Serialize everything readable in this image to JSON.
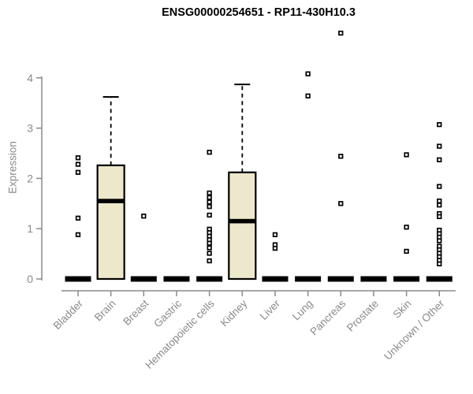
{
  "chart_data": {
    "type": "boxplot",
    "title": "ENSG00000254651 - RP11-430H10.3",
    "ylabel": "Expression",
    "xlabel": "",
    "ylim": [
      0,
      4
    ],
    "yticks": [
      0,
      1,
      2,
      3,
      4
    ],
    "grid": false,
    "legend": "none",
    "categories": [
      "Bladder",
      "Brain",
      "Breast",
      "Gastric",
      "Hematopoietic cells",
      "Kidney",
      "Liver",
      "Lung",
      "Pancreas",
      "Prostate",
      "Skin",
      "Unknown / Other"
    ],
    "boxes": [
      {
        "category": "Bladder",
        "q1": 0,
        "median": 0,
        "q3": 0,
        "whisker_low": 0,
        "whisker_high": 0,
        "outliers": [
          2.41,
          2.28,
          2.12,
          1.21,
          0.88
        ]
      },
      {
        "category": "Brain",
        "q1": 0,
        "median": 1.55,
        "q3": 2.26,
        "whisker_low": 0,
        "whisker_high": 3.62,
        "outliers": []
      },
      {
        "category": "Breast",
        "q1": 0,
        "median": 0,
        "q3": 0,
        "whisker_low": 0,
        "whisker_high": 0,
        "outliers": [
          1.25
        ]
      },
      {
        "category": "Gastric",
        "q1": 0,
        "median": 0,
        "q3": 0,
        "whisker_low": 0,
        "whisker_high": 0,
        "outliers": []
      },
      {
        "category": "Hematopoietic cells",
        "q1": 0,
        "median": 0,
        "q3": 0,
        "whisker_low": 0,
        "whisker_high": 0,
        "outliers": [
          2.52,
          1.71,
          1.62,
          1.53,
          1.44,
          1.27,
          0.99,
          0.92,
          0.85,
          0.78,
          0.71,
          0.62,
          0.51,
          0.36
        ]
      },
      {
        "category": "Kidney",
        "q1": 0,
        "median": 1.15,
        "q3": 2.12,
        "whisker_low": 0,
        "whisker_high": 3.87,
        "outliers": []
      },
      {
        "category": "Liver",
        "q1": 0,
        "median": 0,
        "q3": 0,
        "whisker_low": 0,
        "whisker_high": 0,
        "outliers": [
          0.88,
          0.68,
          0.61
        ]
      },
      {
        "category": "Lung",
        "q1": 0,
        "median": 0,
        "q3": 0,
        "whisker_low": 0,
        "whisker_high": 0,
        "outliers": [
          4.08,
          3.64
        ]
      },
      {
        "category": "Pancreas",
        "q1": 0,
        "median": 0,
        "q3": 0,
        "whisker_low": 0,
        "whisker_high": 0,
        "outliers": [
          4.89,
          2.44,
          1.5
        ]
      },
      {
        "category": "Prostate",
        "q1": 0,
        "median": 0,
        "q3": 0,
        "whisker_low": 0,
        "whisker_high": 0,
        "outliers": []
      },
      {
        "category": "Skin",
        "q1": 0,
        "median": 0,
        "q3": 0,
        "whisker_low": 0,
        "whisker_high": 0,
        "outliers": [
          2.47,
          1.03,
          0.55
        ]
      },
      {
        "category": "Unknown / Other",
        "q1": 0,
        "median": 0,
        "q3": 0,
        "whisker_low": 0,
        "whisker_high": 0,
        "outliers": [
          3.07,
          2.64,
          2.37,
          1.84,
          1.55,
          1.47,
          1.3,
          1.24,
          0.97,
          0.9,
          0.83,
          0.76,
          0.65,
          0.58,
          0.51,
          0.44,
          0.37,
          0.3
        ]
      }
    ],
    "colors": {
      "box_fill": "#EDE8CC",
      "box_stroke": "#000000",
      "median": "#000000",
      "whisker": "#000000",
      "outlier_stroke": "#000000",
      "outlier_fill": "#ffffff",
      "axis": "#8a8a8a",
      "tick_label": "#8a8a8a",
      "title": "#000000",
      "background": "#ffffff"
    }
  }
}
